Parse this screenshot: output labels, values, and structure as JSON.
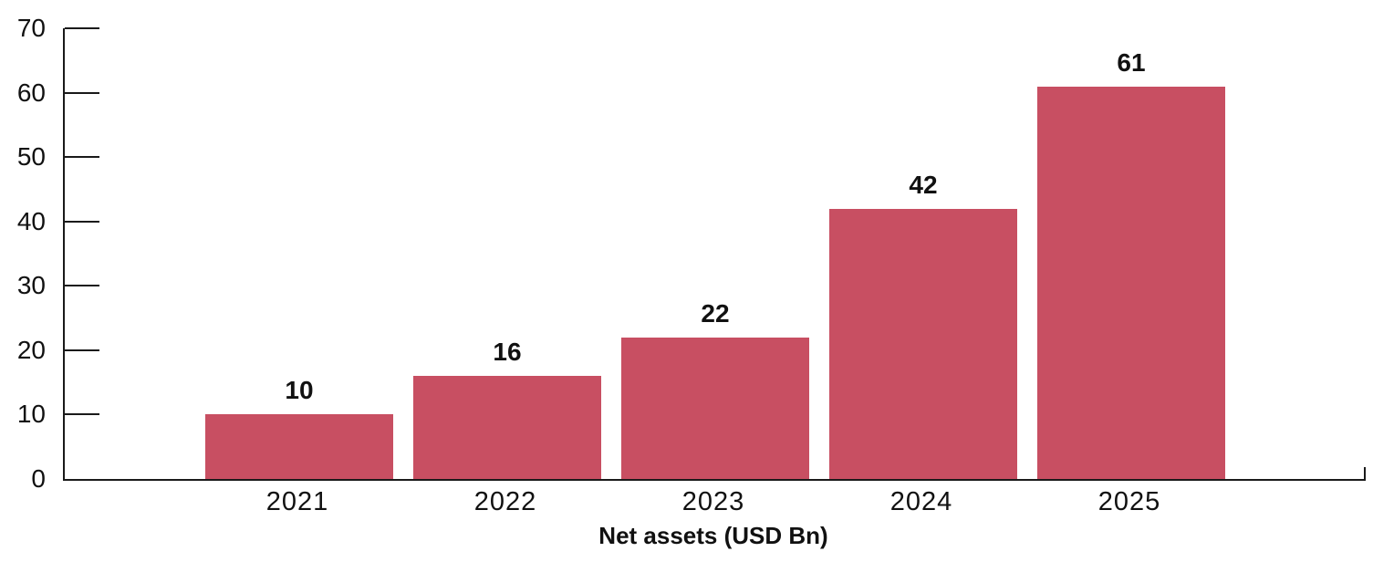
{
  "chart_data": {
    "type": "bar",
    "title": "",
    "xlabel": "Net assets (USD Bn)",
    "ylabel": "",
    "categories": [
      "2021",
      "2022",
      "2023",
      "2024",
      "2025"
    ],
    "values": [
      10,
      16,
      22,
      42,
      61
    ],
    "series": [
      {
        "name": "Net assets (USD Bn)",
        "values": [
          10,
          16,
          22,
          42,
          61
        ]
      }
    ],
    "yticks": [
      0,
      10,
      20,
      30,
      40,
      50,
      60,
      70
    ],
    "ylim": [
      0,
      70
    ],
    "grid": false,
    "legend": "none",
    "value_labels_shown": true,
    "colors": {
      "bar": "#C84F62",
      "axis": "#1a1a1a",
      "text": "#111111",
      "background": "#ffffff"
    }
  }
}
